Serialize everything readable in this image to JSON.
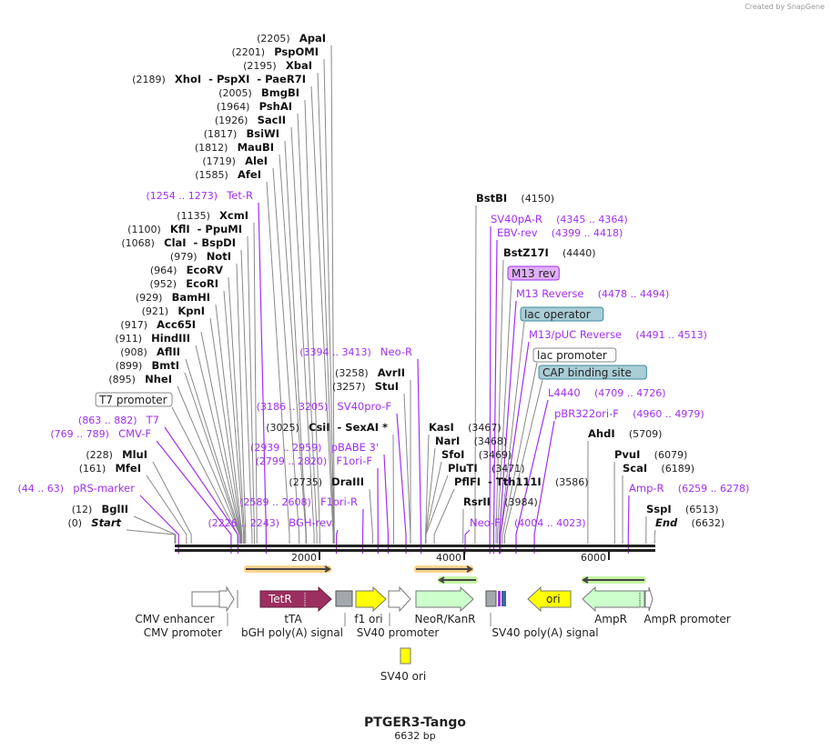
{
  "watermark": "Created by SnapGene",
  "title": "PTGER3-Tango",
  "length_label": "6632 bp",
  "ruler_ticks": [
    "2000",
    "4000",
    "6000"
  ],
  "colors": {
    "primer": "#a030f0",
    "enzyme": "#111111",
    "tetr": "#9b2f5f",
    "yellow": "#ffff00",
    "green": "#ccffcc",
    "grey": "#a3a8ad",
    "teal": "#a9cdd6",
    "m13": "#e0b0f8"
  },
  "left_labels": [
    {
      "name": "ApaI",
      "pos": "(2205)",
      "bp": 2205,
      "type": "enzyme"
    },
    {
      "name": "PspOMI",
      "pos": "(2201)",
      "bp": 2201,
      "type": "enzyme"
    },
    {
      "name": "XbaI",
      "pos": "(2195)",
      "bp": 2195,
      "type": "enzyme"
    },
    {
      "name": "XhoI  - PspXI  - PaeR7I",
      "pos": "(2189)",
      "bp": 2189,
      "type": "enzyme"
    },
    {
      "name": "BmgBI",
      "pos": "(2005)",
      "bp": 2005,
      "type": "enzyme"
    },
    {
      "name": "PshAI",
      "pos": "(1964)",
      "bp": 1964,
      "type": "enzyme"
    },
    {
      "name": "SacII",
      "pos": "(1926)",
      "bp": 1926,
      "type": "enzyme"
    },
    {
      "name": "BsiWI",
      "pos": "(1817)",
      "bp": 1817,
      "type": "enzyme"
    },
    {
      "name": "MauBI",
      "pos": "(1812)",
      "bp": 1812,
      "type": "enzyme"
    },
    {
      "name": "AleI",
      "pos": "(1719)",
      "bp": 1719,
      "type": "enzyme"
    },
    {
      "name": "AfeI",
      "pos": "(1585)",
      "bp": 1585,
      "type": "enzyme"
    },
    {
      "name": "Tet-R",
      "pos": "(1254 .. 1273)",
      "bp": 1263,
      "type": "primer"
    },
    {
      "name": "XcmI",
      "pos": "(1135)",
      "bp": 1135,
      "type": "enzyme"
    },
    {
      "name": "KflI  - PpuMI",
      "pos": "(1100)",
      "bp": 1100,
      "type": "enzyme"
    },
    {
      "name": "ClaI  - BspDI",
      "pos": "(1068)",
      "bp": 1068,
      "type": "enzyme"
    },
    {
      "name": "NotI",
      "pos": "(979)",
      "bp": 979,
      "type": "enzyme"
    },
    {
      "name": "EcoRV",
      "pos": "(964)",
      "bp": 964,
      "type": "enzyme"
    },
    {
      "name": "EcoRI",
      "pos": "(952)",
      "bp": 952,
      "type": "enzyme"
    },
    {
      "name": "BamHI",
      "pos": "(929)",
      "bp": 929,
      "type": "enzyme"
    },
    {
      "name": "KpnI",
      "pos": "(921)",
      "bp": 921,
      "type": "enzyme"
    },
    {
      "name": "Acc65I",
      "pos": "(917)",
      "bp": 917,
      "type": "enzyme"
    },
    {
      "name": "HindIII",
      "pos": "(911)",
      "bp": 911,
      "type": "enzyme"
    },
    {
      "name": "AflII",
      "pos": "(908)",
      "bp": 908,
      "type": "enzyme"
    },
    {
      "name": "BmtI",
      "pos": "(899)",
      "bp": 899,
      "type": "enzyme"
    },
    {
      "name": "NheI",
      "pos": "(895)",
      "bp": 895,
      "type": "enzyme"
    },
    {
      "name": "T7 promoter",
      "pos": "",
      "bp": 870,
      "type": "boxfeat"
    },
    {
      "name": "T7",
      "pos": "(863 .. 882)",
      "bp": 872,
      "type": "primer"
    },
    {
      "name": "CMV-F",
      "pos": "(769 .. 789)",
      "bp": 779,
      "type": "primer"
    },
    {
      "name": "MluI",
      "pos": "(228)",
      "bp": 228,
      "type": "enzyme"
    },
    {
      "name": "MfeI",
      "pos": "(161)",
      "bp": 161,
      "type": "enzyme"
    },
    {
      "name": "pRS-marker",
      "pos": "(44 .. 63)",
      "bp": 53,
      "type": "primer"
    },
    {
      "name": "BglII",
      "pos": "(12)",
      "bp": 12,
      "type": "enzyme"
    },
    {
      "name": "Start",
      "pos": "(0)",
      "bp": 0,
      "type": "end"
    },
    {
      "name": "Neo-R",
      "pos": "(3394 .. 3413)",
      "bp": 3403,
      "type": "primer"
    },
    {
      "name": "AvrII",
      "pos": "(3258)",
      "bp": 3258,
      "type": "enzyme"
    },
    {
      "name": "StuI",
      "pos": "(3257)",
      "bp": 3257,
      "type": "enzyme"
    },
    {
      "name": "SV40pro-F",
      "pos": "(3186 .. 3205)",
      "bp": 3195,
      "type": "primer"
    },
    {
      "name": "CsiI  - SexAI *",
      "pos": "(3025)",
      "bp": 3025,
      "type": "enzyme"
    },
    {
      "name": "pBABE 3'",
      "pos": "(2939 .. 2959)",
      "bp": 2949,
      "type": "primer"
    },
    {
      "name": "F1ori-F",
      "pos": "(2799 .. 2820)",
      "bp": 2809,
      "type": "primer"
    },
    {
      "name": "DraIII",
      "pos": "(2735)",
      "bp": 2735,
      "type": "enzyme"
    },
    {
      "name": "F1ori-R",
      "pos": "(2589 .. 2608)",
      "bp": 2598,
      "type": "primer"
    },
    {
      "name": "BGH-rev",
      "pos": "(2226 .. 2243)",
      "bp": 2234,
      "type": "primer"
    }
  ],
  "right_labels": [
    {
      "name": "BstBI",
      "pos": "(4150)",
      "bp": 4150,
      "type": "enzyme"
    },
    {
      "name": "SV40pA-R",
      "pos": "(4345 .. 4364)",
      "bp": 4354,
      "type": "primer"
    },
    {
      "name": "EBV-rev",
      "pos": "(4399 .. 4418)",
      "bp": 4408,
      "type": "primer"
    },
    {
      "name": "BstZ17I",
      "pos": "(4440)",
      "bp": 4440,
      "type": "enzyme"
    },
    {
      "name": "M13 rev",
      "pos": "",
      "bp": 4460,
      "type": "box-m13"
    },
    {
      "name": "M13 Reverse",
      "pos": "(4478 .. 4494)",
      "bp": 4486,
      "type": "primer"
    },
    {
      "name": "lac operator",
      "pos": "",
      "bp": 4500,
      "type": "box-teal"
    },
    {
      "name": "M13/pUC Reverse",
      "pos": "(4491 .. 4513)",
      "bp": 4502,
      "type": "primer"
    },
    {
      "name": "lac promoter",
      "pos": "",
      "bp": 4530,
      "type": "boxfeat"
    },
    {
      "name": "CAP binding site",
      "pos": "",
      "bp": 4560,
      "type": "box-teal"
    },
    {
      "name": "L4440",
      "pos": "(4709 .. 4726)",
      "bp": 4717,
      "type": "primer"
    },
    {
      "name": "pBR322ori-F",
      "pos": "(4960 .. 4979)",
      "bp": 4969,
      "type": "primer"
    },
    {
      "name": "KasI",
      "pos": "(3467)",
      "bp": 3467,
      "type": "enzyme"
    },
    {
      "name": "NarI",
      "pos": "(3468)",
      "bp": 3468,
      "type": "enzyme"
    },
    {
      "name": "SfoI",
      "pos": "(3469)",
      "bp": 3469,
      "type": "enzyme"
    },
    {
      "name": "PluTI",
      "pos": "(3471)",
      "bp": 3471,
      "type": "enzyme"
    },
    {
      "name": "PflFI  - Tth111I",
      "pos": "(3586)",
      "bp": 3586,
      "type": "enzyme"
    },
    {
      "name": "RsrII",
      "pos": "(3984)",
      "bp": 3984,
      "type": "enzyme"
    },
    {
      "name": "Neo-F",
      "pos": "(4004 .. 4023)",
      "bp": 4013,
      "type": "primer"
    },
    {
      "name": "AhdI",
      "pos": "(5709)",
      "bp": 5709,
      "type": "enzyme"
    },
    {
      "name": "PvuI",
      "pos": "(6079)",
      "bp": 6079,
      "type": "enzyme"
    },
    {
      "name": "ScaI",
      "pos": "(6189)",
      "bp": 6189,
      "type": "enzyme"
    },
    {
      "name": "Amp-R",
      "pos": "(6259 .. 6278)",
      "bp": 6268,
      "type": "primer"
    },
    {
      "name": "SspI",
      "pos": "(6513)",
      "bp": 6513,
      "type": "enzyme"
    },
    {
      "name": "End",
      "pos": "(6632)",
      "bp": 6632,
      "type": "end"
    }
  ],
  "features": {
    "tetr_inner": "TetR",
    "ori_inner": "ori",
    "labels": [
      "CMV enhancer",
      "CMV promoter",
      "tTA",
      "bGH poly(A) signal",
      "f1 ori",
      "SV40 promoter",
      "NeoR/KanR",
      "SV40 poly(A) signal",
      "AmpR",
      "AmpR promoter",
      "SV40 ori"
    ]
  }
}
